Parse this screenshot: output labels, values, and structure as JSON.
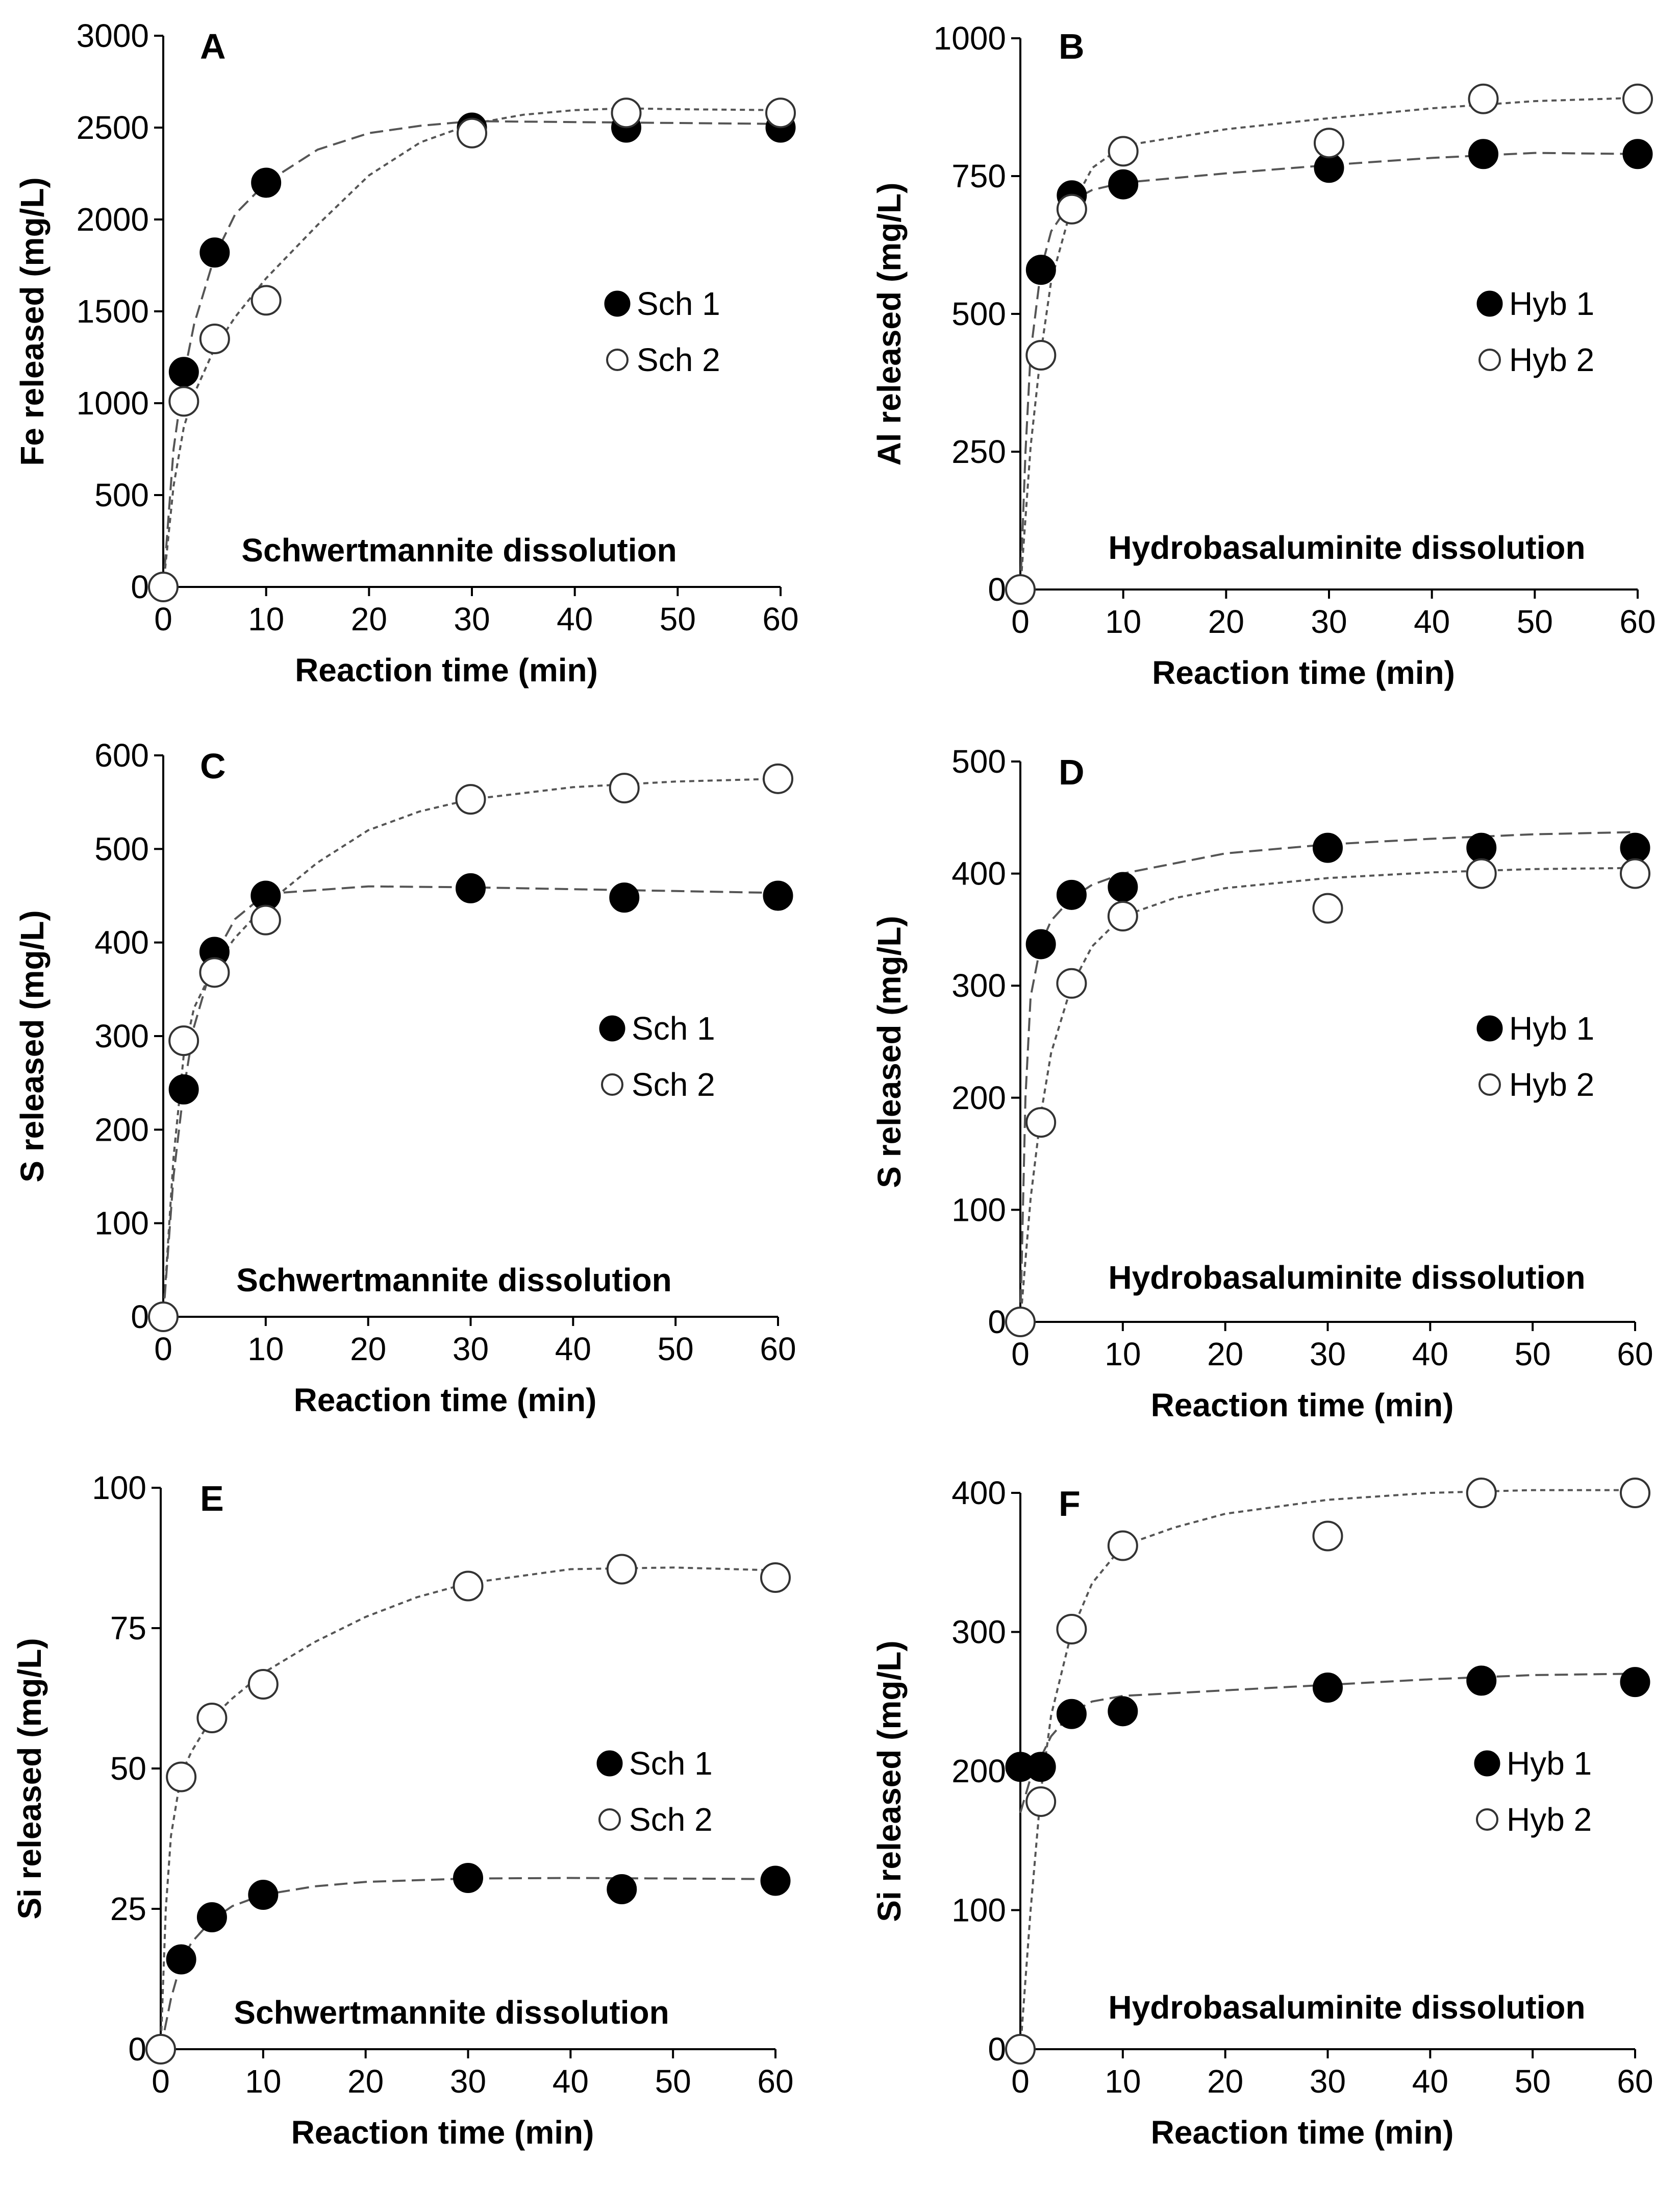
{
  "chart_data": [
    {
      "type": "scatter",
      "panel": "A",
      "annotation": "Schwertmannite dissolution",
      "xlabel": "Reaction time (min)",
      "ylabel": "Fe released (mg/L)",
      "xlim": [
        0,
        60
      ],
      "ylim": [
        0,
        3000
      ],
      "xticks": [
        0,
        10,
        20,
        30,
        40,
        50,
        60
      ],
      "yticks": [
        0,
        500,
        1000,
        1500,
        2000,
        2500,
        3000
      ],
      "legend_position": "right-middle",
      "series": [
        {
          "name": "Sch 1",
          "marker": "filled",
          "line": "long-dash",
          "x": [
            0,
            2,
            5,
            10,
            30,
            45,
            60
          ],
          "y": [
            0,
            1170,
            1820,
            2200,
            2500,
            2500,
            2500
          ],
          "fit": [
            [
              0,
              0
            ],
            [
              1,
              750
            ],
            [
              2,
              1150
            ],
            [
              3,
              1430
            ],
            [
              5,
              1800
            ],
            [
              7,
              2030
            ],
            [
              10,
              2200
            ],
            [
              15,
              2380
            ],
            [
              20,
              2470
            ],
            [
              25,
              2510
            ],
            [
              30,
              2535
            ],
            [
              40,
              2530
            ],
            [
              50,
              2525
            ],
            [
              60,
              2520
            ]
          ]
        },
        {
          "name": "Sch 2",
          "marker": "open",
          "line": "short-dash",
          "x": [
            0,
            2,
            5,
            10,
            30,
            45,
            60
          ],
          "y": [
            0,
            1010,
            1350,
            1560,
            2470,
            2580,
            2580
          ],
          "fit": [
            [
              0,
              0
            ],
            [
              1,
              550
            ],
            [
              2,
              870
            ],
            [
              3,
              1050
            ],
            [
              5,
              1300
            ],
            [
              7,
              1470
            ],
            [
              10,
              1680
            ],
            [
              15,
              1970
            ],
            [
              20,
              2240
            ],
            [
              25,
              2420
            ],
            [
              30,
              2520
            ],
            [
              35,
              2570
            ],
            [
              40,
              2595
            ],
            [
              45,
              2605
            ],
            [
              50,
              2600
            ],
            [
              60,
              2595
            ]
          ]
        }
      ]
    },
    {
      "type": "scatter",
      "panel": "B",
      "annotation": "Hydrobasaluminite dissolution",
      "xlabel": "Reaction time (min)",
      "ylabel": "Al released (mg/L)",
      "xlim": [
        0,
        60
      ],
      "ylim": [
        0,
        1000
      ],
      "xticks": [
        0,
        10,
        20,
        30,
        40,
        50,
        60
      ],
      "yticks": [
        0,
        250,
        500,
        750,
        1000
      ],
      "legend_position": "right-middle",
      "series": [
        {
          "name": "Hyb 1",
          "marker": "filled",
          "line": "long-dash",
          "x": [
            0,
            2,
            5,
            10,
            30,
            45,
            60
          ],
          "y": [
            0,
            580,
            715,
            735,
            765,
            790,
            790
          ],
          "fit": [
            [
              0,
              0
            ],
            [
              0.5,
              250
            ],
            [
              1,
              430
            ],
            [
              2,
              580
            ],
            [
              3,
              650
            ],
            [
              5,
              705
            ],
            [
              7,
              725
            ],
            [
              10,
              738
            ],
            [
              20,
              755
            ],
            [
              30,
              770
            ],
            [
              40,
              783
            ],
            [
              50,
              792
            ],
            [
              60,
              790
            ]
          ]
        },
        {
          "name": "Hyb 2",
          "marker": "open",
          "line": "short-dash",
          "x": [
            0,
            2,
            5,
            10,
            30,
            45,
            60
          ],
          "y": [
            0,
            425,
            690,
            795,
            810,
            890,
            890
          ],
          "fit": [
            [
              0,
              0
            ],
            [
              1,
              260
            ],
            [
              2,
              430
            ],
            [
              3,
              560
            ],
            [
              5,
              695
            ],
            [
              7,
              765
            ],
            [
              10,
              805
            ],
            [
              15,
              820
            ],
            [
              20,
              835
            ],
            [
              30,
              855
            ],
            [
              40,
              873
            ],
            [
              50,
              886
            ],
            [
              60,
              892
            ]
          ]
        }
      ]
    },
    {
      "type": "scatter",
      "panel": "C",
      "annotation": "Schwertmannite dissolution",
      "xlabel": "Reaction time (min)",
      "ylabel": "S released (mg/L)",
      "xlim": [
        0,
        60
      ],
      "ylim": [
        0,
        600
      ],
      "xticks": [
        0,
        10,
        20,
        30,
        40,
        50,
        60
      ],
      "yticks": [
        0,
        100,
        200,
        300,
        400,
        500,
        600
      ],
      "legend_position": "right-middle",
      "series": [
        {
          "name": "Sch 1",
          "marker": "filled",
          "line": "long-dash",
          "x": [
            0,
            2,
            5,
            10,
            30,
            45,
            60
          ],
          "y": [
            0,
            243,
            390,
            450,
            458,
            448,
            450
          ],
          "fit": [
            [
              0,
              0
            ],
            [
              1,
              150
            ],
            [
              2,
              243
            ],
            [
              3,
              310
            ],
            [
              5,
              385
            ],
            [
              7,
              425
            ],
            [
              10,
              452
            ],
            [
              20,
              460
            ],
            [
              30,
              459
            ],
            [
              40,
              457
            ],
            [
              50,
              455
            ],
            [
              60,
              453
            ]
          ]
        },
        {
          "name": "Sch 2",
          "marker": "open",
          "line": "short-dash",
          "x": [
            0,
            2,
            5,
            10,
            30,
            45,
            60
          ],
          "y": [
            0,
            295,
            368,
            424,
            553,
            565,
            575
          ],
          "fit": [
            [
              0,
              0
            ],
            [
              1,
              170
            ],
            [
              2,
              280
            ],
            [
              3,
              330
            ],
            [
              5,
              375
            ],
            [
              7,
              405
            ],
            [
              10,
              440
            ],
            [
              15,
              485
            ],
            [
              20,
              520
            ],
            [
              25,
              540
            ],
            [
              30,
              553
            ],
            [
              40,
              566
            ],
            [
              50,
              572
            ],
            [
              60,
              575
            ]
          ]
        }
      ]
    },
    {
      "type": "scatter",
      "panel": "D",
      "annotation": "Hydrobasaluminite dissolution",
      "xlabel": "Reaction time (min)",
      "ylabel": "S released (mg/L)",
      "xlim": [
        0,
        60
      ],
      "ylim": [
        0,
        500
      ],
      "xticks": [
        0,
        10,
        20,
        30,
        40,
        50,
        60
      ],
      "yticks": [
        0,
        100,
        200,
        300,
        400,
        500
      ],
      "legend_position": "right-middle",
      "series": [
        {
          "name": "Hyb 1",
          "marker": "filled",
          "line": "long-dash",
          "x": [
            0,
            2,
            5,
            10,
            30,
            45,
            60
          ],
          "y": [
            0,
            337,
            381,
            388,
            423,
            423,
            423
          ],
          "fit": [
            [
              0,
              0
            ],
            [
              0.5,
              200
            ],
            [
              1,
              290
            ],
            [
              2,
              337
            ],
            [
              3,
              358
            ],
            [
              5,
              378
            ],
            [
              7,
              390
            ],
            [
              10,
              400
            ],
            [
              20,
              418
            ],
            [
              30,
              426
            ],
            [
              40,
              431
            ],
            [
              50,
              435
            ],
            [
              60,
              437
            ]
          ]
        },
        {
          "name": "Hyb 2",
          "marker": "open",
          "line": "short-dash",
          "x": [
            0,
            2,
            5,
            10,
            30,
            45,
            60
          ],
          "y": [
            0,
            178,
            302,
            362,
            369,
            400,
            400
          ],
          "fit": [
            [
              0,
              0
            ],
            [
              1,
              110
            ],
            [
              2,
              185
            ],
            [
              3,
              240
            ],
            [
              5,
              300
            ],
            [
              7,
              335
            ],
            [
              10,
              362
            ],
            [
              15,
              378
            ],
            [
              20,
              387
            ],
            [
              30,
              396
            ],
            [
              40,
              401
            ],
            [
              50,
              404
            ],
            [
              60,
              405
            ]
          ]
        }
      ]
    },
    {
      "type": "scatter",
      "panel": "E",
      "annotation": "Schwertmannite dissolution",
      "xlabel": "Reaction time (min)",
      "ylabel": "Si released (mg/L)",
      "xlim": [
        0,
        60
      ],
      "ylim": [
        0,
        100
      ],
      "xticks": [
        0,
        10,
        20,
        30,
        40,
        50,
        60
      ],
      "yticks": [
        0,
        25,
        50,
        75,
        100
      ],
      "legend_position": "right-middle",
      "series": [
        {
          "name": "Sch 1",
          "marker": "filled",
          "line": "long-dash",
          "x": [
            0,
            2,
            5,
            10,
            30,
            45,
            60
          ],
          "y": [
            0,
            16,
            23.5,
            27.5,
            30.5,
            28.5,
            30
          ],
          "fit": [
            [
              0,
              0
            ],
            [
              1,
              9
            ],
            [
              2,
              15.5
            ],
            [
              3,
              19
            ],
            [
              5,
              23
            ],
            [
              7,
              25.5
            ],
            [
              10,
              27.5
            ],
            [
              15,
              29
            ],
            [
              20,
              29.8
            ],
            [
              30,
              30.4
            ],
            [
              40,
              30.5
            ],
            [
              50,
              30.4
            ],
            [
              60,
              30.3
            ]
          ]
        },
        {
          "name": "Sch 2",
          "marker": "open",
          "line": "short-dash",
          "x": [
            0,
            2,
            5,
            10,
            30,
            45,
            60
          ],
          "y": [
            0,
            48.5,
            59,
            65,
            82.5,
            85.5,
            84
          ],
          "fit": [
            [
              0,
              0
            ],
            [
              0.5,
              25
            ],
            [
              1,
              38
            ],
            [
              2,
              49
            ],
            [
              3,
              53
            ],
            [
              5,
              59
            ],
            [
              7,
              62.5
            ],
            [
              10,
              67
            ],
            [
              15,
              72.5
            ],
            [
              20,
              77
            ],
            [
              25,
              80.5
            ],
            [
              30,
              83
            ],
            [
              40,
              85.5
            ],
            [
              50,
              85.8
            ],
            [
              60,
              85.3
            ]
          ]
        }
      ]
    },
    {
      "type": "scatter",
      "panel": "F",
      "annotation": "Hydrobasaluminite dissolution",
      "xlabel": "Reaction time (min)",
      "ylabel": "Si released (mg/L)",
      "xlim": [
        0,
        60
      ],
      "ylim": [
        0,
        400
      ],
      "xticks": [
        0,
        10,
        20,
        30,
        40,
        50,
        60
      ],
      "yticks": [
        0,
        100,
        200,
        300,
        400
      ],
      "legend_position": "right-middle",
      "series": [
        {
          "name": "Hyb 1",
          "marker": "filled",
          "line": "long-dash",
          "x": [
            0,
            2,
            5,
            10,
            30,
            45,
            60
          ],
          "y": [
            203,
            203,
            241,
            243,
            260,
            265,
            264
          ],
          "fit": [
            [
              0,
              170
            ],
            [
              1,
              195
            ],
            [
              2,
              210
            ],
            [
              3,
              225
            ],
            [
              5,
              242
            ],
            [
              7,
              250
            ],
            [
              10,
              254
            ],
            [
              20,
              258
            ],
            [
              30,
              262
            ],
            [
              40,
              266
            ],
            [
              50,
              269
            ],
            [
              60,
              270
            ]
          ]
        },
        {
          "name": "Hyb 2",
          "marker": "open",
          "line": "short-dash",
          "x": [
            0,
            2,
            5,
            10,
            30,
            45,
            60
          ],
          "y": [
            0,
            178,
            302,
            362,
            369,
            400,
            400
          ],
          "fit": [
            [
              0,
              0
            ],
            [
              1,
              100
            ],
            [
              2,
              185
            ],
            [
              3,
              240
            ],
            [
              5,
              300
            ],
            [
              7,
              335
            ],
            [
              10,
              362
            ],
            [
              15,
              375
            ],
            [
              20,
              385
            ],
            [
              30,
              395
            ],
            [
              40,
              400
            ],
            [
              50,
              402
            ],
            [
              60,
              402
            ]
          ]
        }
      ]
    }
  ]
}
